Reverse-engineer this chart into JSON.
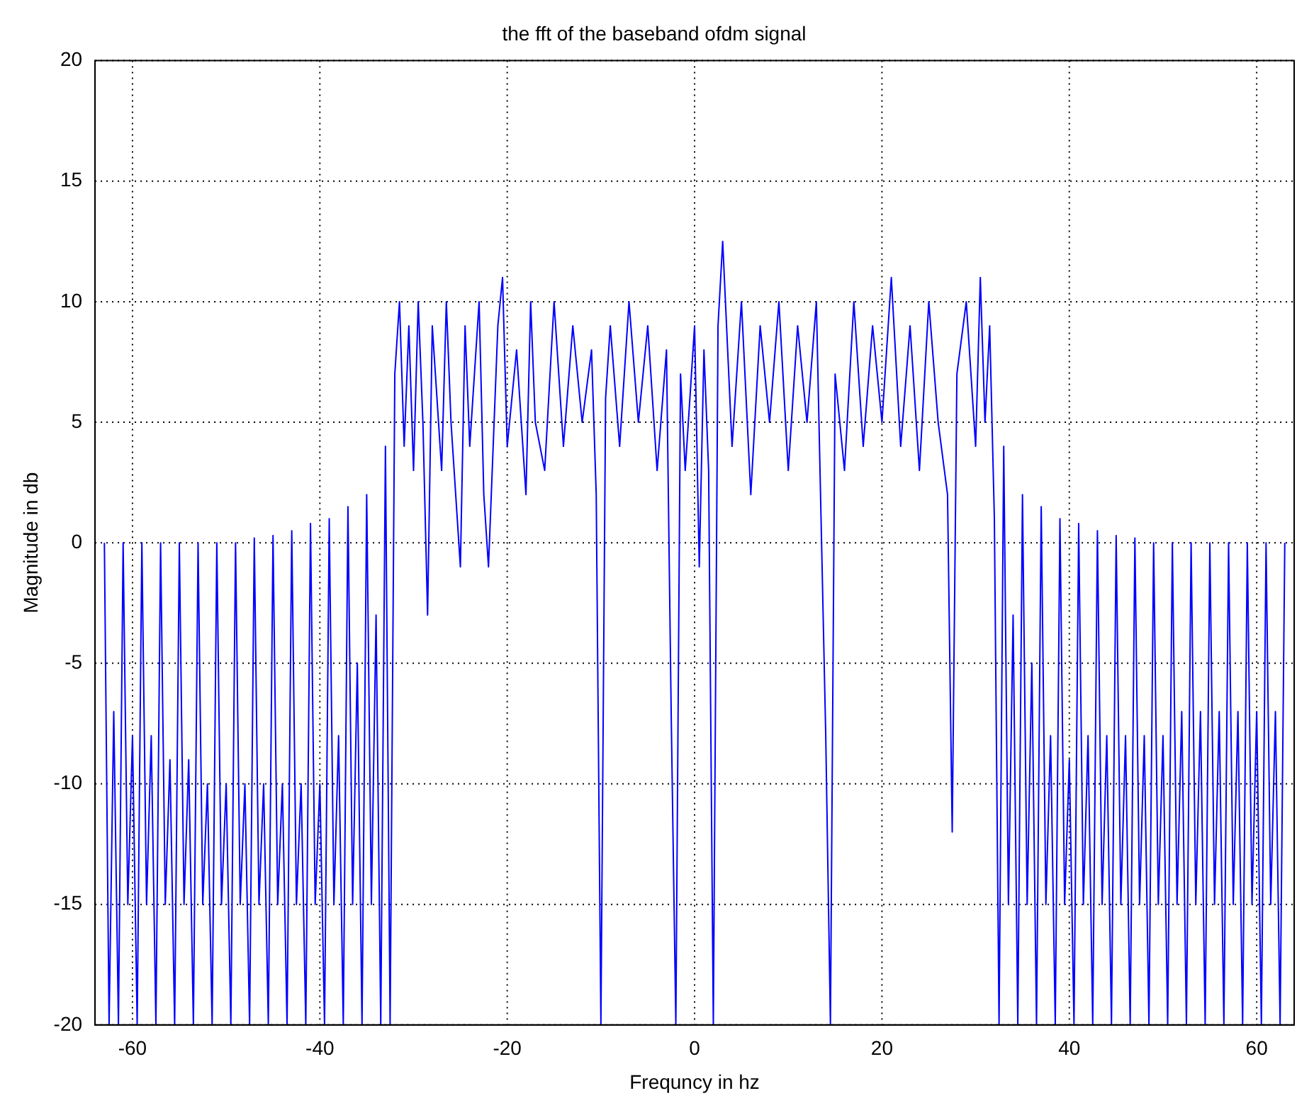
{
  "chart_data": {
    "type": "line",
    "title": "the fft of the baseband ofdm signal",
    "xlabel": "Frequncy in hz",
    "ylabel": "Magnitude in db",
    "xlim": [
      -64,
      64
    ],
    "ylim": [
      -20,
      20
    ],
    "xticks": [
      -60,
      -40,
      -20,
      0,
      20,
      40,
      60
    ],
    "yticks": [
      -20,
      -15,
      -10,
      -5,
      0,
      5,
      10,
      15,
      20
    ],
    "grid": true,
    "marker": "none",
    "line_style": "solid",
    "series": [
      {
        "color": "#0000ff",
        "x": [
          -63,
          -62.5,
          -62,
          -61.5,
          -61,
          -60.5,
          -60,
          -59.5,
          -59,
          -58.5,
          -58,
          -57.5,
          -57,
          -56.5,
          -56,
          -55.5,
          -55,
          -54.5,
          -54,
          -53.5,
          -53,
          -52.5,
          -52,
          -51.5,
          -51,
          -50.5,
          -50,
          -49.5,
          -49,
          -48.5,
          -48,
          -47.5,
          -47,
          -46.5,
          -46,
          -45.5,
          -45,
          -44.5,
          -44,
          -43.5,
          -43,
          -42.5,
          -42,
          -41.5,
          -41,
          -40.5,
          -40,
          -39.5,
          -39,
          -38.5,
          -38,
          -37.5,
          -37,
          -36.5,
          -36,
          -35.5,
          -35,
          -34.5,
          -34,
          -33.5,
          -33,
          -32.5,
          -32,
          -31.5,
          -31,
          -30.5,
          -30,
          -29.5,
          -29,
          -28.5,
          -28,
          -27,
          -26.5,
          -26,
          -25,
          -24.5,
          -24,
          -23,
          -22.5,
          -22,
          -21,
          -20.5,
          -20,
          -19,
          -18,
          -17.5,
          -17,
          -16,
          -15,
          -14,
          -13,
          -12,
          -11,
          -10.5,
          -10,
          -9.5,
          -9,
          -8,
          -7,
          -6,
          -5,
          -4,
          -3,
          -2.5,
          -2,
          -1.5,
          -1,
          0,
          0.5,
          1,
          1.5,
          2,
          2.5,
          3,
          4,
          5,
          6,
          7,
          8,
          9,
          10,
          11,
          12,
          13,
          14,
          14.5,
          15,
          16,
          17,
          18,
          19,
          20,
          21,
          22,
          23,
          24,
          25,
          26,
          27,
          27.5,
          28,
          29,
          30,
          30.5,
          31,
          31.5,
          32,
          32.5,
          33,
          33.5,
          34,
          34.5,
          35,
          35.5,
          36,
          36.5,
          37,
          37.5,
          38,
          38.5,
          39,
          39.5,
          40,
          40.5,
          41,
          41.5,
          42,
          42.5,
          43,
          43.5,
          44,
          44.5,
          45,
          45.5,
          46,
          46.5,
          47,
          47.5,
          48,
          48.5,
          49,
          49.5,
          50,
          50.5,
          51,
          51.5,
          52,
          52.5,
          53,
          53.5,
          54,
          54.5,
          55,
          55.5,
          56,
          56.5,
          57,
          57.5,
          58,
          58.5,
          59,
          59.5,
          60,
          60.5,
          61,
          61.5,
          62,
          62.5,
          63
        ],
        "values": [
          0,
          -20,
          -7,
          -20,
          0,
          -15,
          -8,
          -20,
          0,
          -15,
          -8,
          -20,
          0,
          -15,
          -9,
          -20,
          0,
          -15,
          -9,
          -20,
          0,
          -15,
          -10,
          -20,
          0,
          -15,
          -10,
          -20,
          0,
          -15,
          -10,
          -20,
          0.2,
          -15,
          -10,
          -20,
          0.3,
          -15,
          -10,
          -20,
          0.5,
          -15,
          -10,
          -20,
          0.8,
          -15,
          -10,
          -20,
          1,
          -15,
          -8,
          -20,
          1.5,
          -15,
          -5,
          -20,
          2,
          -15,
          -3,
          -20,
          4,
          -20,
          7,
          10,
          4,
          9,
          3,
          10,
          5,
          -3,
          9,
          3,
          10,
          5,
          -1,
          9,
          4,
          10,
          2,
          -1,
          9,
          11,
          4,
          8,
          2,
          10,
          5,
          3,
          10,
          4,
          9,
          5,
          8,
          2,
          -20,
          6,
          9,
          4,
          10,
          5,
          9,
          3,
          8,
          -7,
          -20,
          7,
          3,
          9,
          -1,
          8,
          3,
          -20,
          9,
          12.5,
          4,
          10,
          2,
          9,
          5,
          10,
          3,
          9,
          5,
          10,
          -8,
          -20,
          7,
          3,
          10,
          4,
          9,
          5,
          11,
          4,
          9,
          3,
          10,
          5,
          2,
          -12,
          7,
          10,
          4,
          11,
          5,
          9,
          1,
          -20,
          4,
          -15,
          -3,
          -20,
          2,
          -15,
          -5,
          -20,
          1.5,
          -15,
          -8,
          -20,
          1,
          -15,
          -9,
          -20,
          0.8,
          -15,
          -8,
          -20,
          0.5,
          -15,
          -8,
          -20,
          0.3,
          -15,
          -8,
          -20,
          0.2,
          -15,
          -8,
          -20,
          0,
          -15,
          -8,
          -20,
          0,
          -15,
          -7,
          -20,
          0,
          -15,
          -7,
          -20,
          0,
          -15,
          -7,
          -20,
          0,
          -15,
          -7,
          -20,
          0,
          -15,
          -7,
          -20,
          0,
          -15,
          -7,
          -20,
          0
        ]
      }
    ]
  }
}
